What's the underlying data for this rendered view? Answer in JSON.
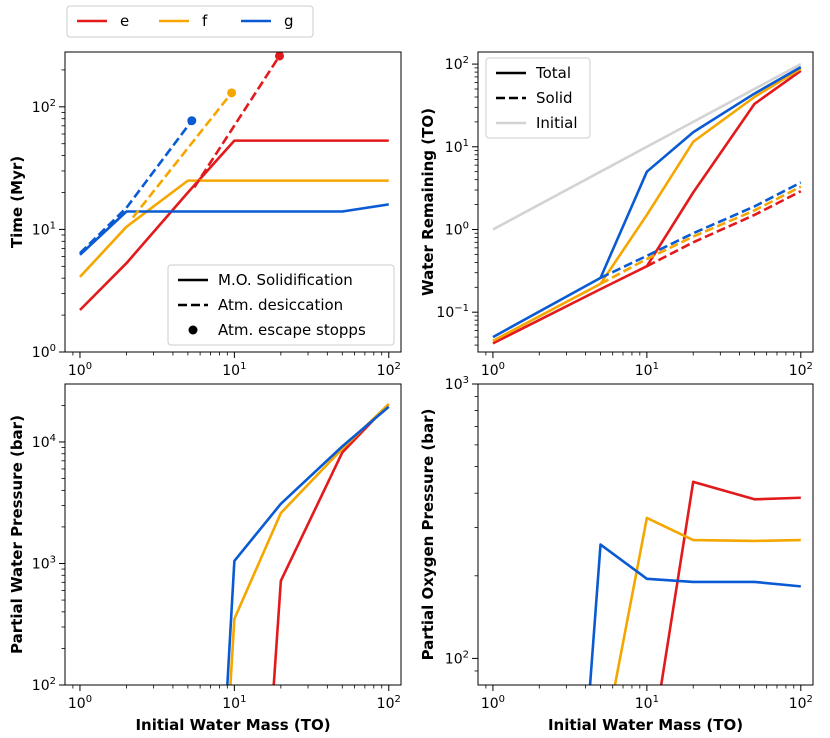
{
  "colors": {
    "e": "#e31a1c",
    "f": "#f5a700",
    "g": "#0a5bd3",
    "initial": "#d3d3d3"
  },
  "top_legend": [
    {
      "label": "e",
      "color_key": "e"
    },
    {
      "label": "f",
      "color_key": "f"
    },
    {
      "label": "g",
      "color_key": "g"
    }
  ],
  "chart_data": [
    {
      "type": "line",
      "panel": "top-left",
      "xlabel": "",
      "ylabel": "Time (Myr)",
      "xscale": "log",
      "yscale": "log",
      "xlim": [
        0.8,
        120
      ],
      "ylim": [
        1,
        280
      ],
      "xticks": [
        {
          "v": 1,
          "b": "10",
          "e": "0"
        },
        {
          "v": 10,
          "b": "10",
          "e": "1"
        },
        {
          "v": 100,
          "b": "10",
          "e": "2"
        }
      ],
      "yticks": [
        {
          "v": 1,
          "b": "10",
          "e": "0"
        },
        {
          "v": 10,
          "b": "10",
          "e": "1"
        },
        {
          "v": 100,
          "b": "10",
          "e": "2"
        }
      ],
      "series": [
        {
          "name": "e M.O. Solidification",
          "color_key": "e",
          "style": "solid",
          "x": [
            1,
            2,
            5,
            10,
            20,
            50,
            100
          ],
          "y": [
            2.2,
            5.3,
            20,
            53,
            53,
            53,
            53
          ]
        },
        {
          "name": "f M.O. Solidification",
          "color_key": "f",
          "style": "solid",
          "x": [
            1,
            2,
            5,
            10,
            20,
            50,
            100
          ],
          "y": [
            4.1,
            10.5,
            25,
            25,
            25,
            25,
            25
          ]
        },
        {
          "name": "g M.O. Solidification",
          "color_key": "g",
          "style": "solid",
          "x": [
            1,
            2,
            5,
            10,
            20,
            50,
            100
          ],
          "y": [
            6.2,
            14,
            14,
            14,
            14,
            14,
            16
          ]
        },
        {
          "name": "e Atm. desiccation",
          "color_key": "e",
          "style": "dashed",
          "x": [
            5.5,
            19.6
          ],
          "y": [
            22,
            260
          ]
        },
        {
          "name": "f Atm. desiccation",
          "color_key": "f",
          "style": "dashed",
          "x": [
            2.2,
            9.6
          ],
          "y": [
            12.5,
            130
          ]
        },
        {
          "name": "g Atm. desiccation",
          "color_key": "g",
          "style": "dashed",
          "x": [
            1,
            2,
            5.3
          ],
          "y": [
            6.4,
            15,
            77
          ]
        },
        {
          "name": "e Atm. escape stopps",
          "color_key": "e",
          "style": "marker",
          "x": [
            19.6
          ],
          "y": [
            260
          ]
        },
        {
          "name": "f Atm. escape stopps",
          "color_key": "f",
          "style": "marker",
          "x": [
            9.6
          ],
          "y": [
            130
          ]
        },
        {
          "name": "g Atm. escape stopps",
          "color_key": "g",
          "style": "marker",
          "x": [
            5.3
          ],
          "y": [
            77
          ]
        }
      ],
      "legend": {
        "placement": "lower-right",
        "entries": [
          {
            "style": "solid",
            "label": "M.O. Solidification"
          },
          {
            "style": "dashed",
            "label": "Atm. desiccation"
          },
          {
            "style": "marker",
            "label": "Atm. escape stopps"
          }
        ]
      }
    },
    {
      "type": "line",
      "panel": "top-right",
      "xlabel": "",
      "ylabel": "Water Remaining (TO)",
      "xscale": "log",
      "yscale": "log",
      "xlim": [
        0.8,
        120
      ],
      "ylim": [
        0.033,
        140
      ],
      "xticks": [
        {
          "v": 1,
          "b": "10",
          "e": "0"
        },
        {
          "v": 10,
          "b": "10",
          "e": "1"
        },
        {
          "v": 100,
          "b": "10",
          "e": "2"
        }
      ],
      "yticks": [
        {
          "v": 0.1,
          "b": "10",
          "e": "−1"
        },
        {
          "v": 1,
          "b": "10",
          "e": "0"
        },
        {
          "v": 10,
          "b": "10",
          "e": "1"
        },
        {
          "v": 100,
          "b": "10",
          "e": "2"
        }
      ],
      "series": [
        {
          "name": "Initial",
          "color_key": "initial",
          "style": "solid",
          "x": [
            1,
            100
          ],
          "y": [
            1,
            100
          ]
        },
        {
          "name": "e Total",
          "color_key": "e",
          "style": "solid",
          "x": [
            1,
            5,
            10,
            20,
            50,
            100
          ],
          "y": [
            0.042,
            0.19,
            0.36,
            2.8,
            33,
            83
          ]
        },
        {
          "name": "f Total",
          "color_key": "f",
          "style": "solid",
          "x": [
            1,
            5,
            10,
            20,
            50,
            100
          ],
          "y": [
            0.045,
            0.22,
            1.5,
            11.5,
            40,
            88
          ]
        },
        {
          "name": "g Total",
          "color_key": "g",
          "style": "solid",
          "x": [
            1,
            5,
            10,
            20,
            50,
            100
          ],
          "y": [
            0.05,
            0.26,
            5,
            15,
            44,
            92
          ]
        },
        {
          "name": "e Solid",
          "color_key": "e",
          "style": "dashed",
          "x": [
            10,
            20,
            50,
            100
          ],
          "y": [
            0.36,
            0.7,
            1.5,
            2.9
          ]
        },
        {
          "name": "f Solid",
          "color_key": "f",
          "style": "dashed",
          "x": [
            5,
            10,
            20,
            50,
            100
          ],
          "y": [
            0.22,
            0.44,
            0.82,
            1.7,
            3.3
          ]
        },
        {
          "name": "g Solid",
          "color_key": "g",
          "style": "dashed",
          "x": [
            5,
            10,
            20,
            50,
            100
          ],
          "y": [
            0.26,
            0.48,
            0.9,
            1.9,
            3.7
          ]
        }
      ],
      "legend": {
        "placement": "upper-left",
        "entries": [
          {
            "style": "solid",
            "label": "Total"
          },
          {
            "style": "dashed",
            "label": "Solid"
          },
          {
            "style": "initial",
            "label": "Initial"
          }
        ]
      }
    },
    {
      "type": "line",
      "panel": "bottom-left",
      "xlabel": "Initial Water Mass (TO)",
      "ylabel": "Partial Water Pressure (bar)",
      "xscale": "log",
      "yscale": "log",
      "xlim": [
        0.8,
        120
      ],
      "ylim": [
        100,
        30000
      ],
      "xticks": [
        {
          "v": 1,
          "b": "10",
          "e": "0"
        },
        {
          "v": 10,
          "b": "10",
          "e": "1"
        },
        {
          "v": 100,
          "b": "10",
          "e": "2"
        }
      ],
      "yticks": [
        {
          "v": 100,
          "b": "10",
          "e": "2"
        },
        {
          "v": 1000,
          "b": "10",
          "e": "3"
        },
        {
          "v": 10000,
          "b": "10",
          "e": "4"
        }
      ],
      "series": [
        {
          "name": "e",
          "color_key": "e",
          "style": "solid",
          "x": [
            17.5,
            20,
            50,
            100
          ],
          "y": [
            60,
            720,
            8200,
            20500
          ]
        },
        {
          "name": "f",
          "color_key": "f",
          "style": "solid",
          "x": [
            9.2,
            10,
            20,
            50,
            100
          ],
          "y": [
            60,
            350,
            2600,
            8800,
            20500
          ]
        },
        {
          "name": "g",
          "color_key": "g",
          "style": "solid",
          "x": [
            8.8,
            10,
            20,
            50,
            100
          ],
          "y": [
            60,
            1050,
            3100,
            9200,
            19500
          ]
        }
      ]
    },
    {
      "type": "line",
      "panel": "bottom-right",
      "xlabel": "Initial Water Mass (TO)",
      "ylabel": "Partial Oxygen Pressure (bar)",
      "xscale": "log",
      "yscale": "log",
      "xlim": [
        0.8,
        120
      ],
      "ylim": [
        80,
        1000
      ],
      "xticks": [
        {
          "v": 1,
          "b": "10",
          "e": "0"
        },
        {
          "v": 10,
          "b": "10",
          "e": "1"
        },
        {
          "v": 100,
          "b": "10",
          "e": "2"
        }
      ],
      "yticks": [
        {
          "v": 100,
          "b": "10",
          "e": "2"
        },
        {
          "v": 1000,
          "b": "10",
          "e": "3"
        }
      ],
      "series": [
        {
          "name": "e",
          "color_key": "e",
          "style": "solid",
          "x": [
            10.2,
            20,
            50,
            100
          ],
          "y": [
            40,
            440,
            380,
            385
          ]
        },
        {
          "name": "f",
          "color_key": "f",
          "style": "solid",
          "x": [
            4.9,
            10,
            20,
            50,
            100
          ],
          "y": [
            40,
            325,
            270,
            268,
            270
          ]
        },
        {
          "name": "g",
          "color_key": "g",
          "style": "solid",
          "x": [
            3.9,
            5,
            10,
            20,
            50,
            100
          ],
          "y": [
            40,
            260,
            195,
            190,
            190,
            183
          ]
        }
      ]
    }
  ]
}
